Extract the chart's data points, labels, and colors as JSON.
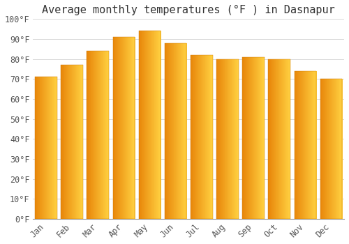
{
  "title": "Average monthly temperatures (°F ) in Dasnapur",
  "months": [
    "Jan",
    "Feb",
    "Mar",
    "Apr",
    "May",
    "Jun",
    "Jul",
    "Aug",
    "Sep",
    "Oct",
    "Nov",
    "Dec"
  ],
  "values": [
    71,
    77,
    84,
    91,
    94,
    88,
    82,
    80,
    81,
    80,
    74,
    70
  ],
  "bar_color_left": "#E8860A",
  "bar_color_right": "#FFD040",
  "background_color": "#FFFFFF",
  "grid_color": "#D8D8D8",
  "ylim": [
    0,
    100
  ],
  "ytick_step": 10,
  "title_fontsize": 11,
  "tick_fontsize": 8.5,
  "font_family": "monospace"
}
